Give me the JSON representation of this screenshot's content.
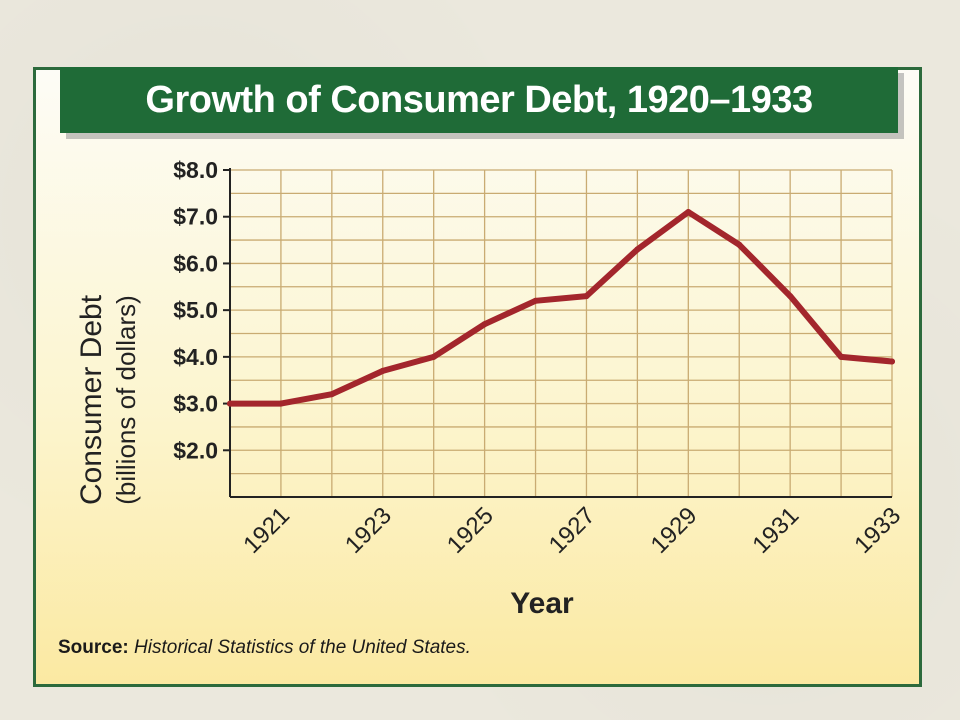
{
  "chart_data": {
    "type": "line",
    "title": "Growth of Consumer Debt, 1920–1933",
    "xlabel": "Year",
    "ylabel_line1": "Consumer Debt",
    "ylabel_line2": "(billions of dollars)",
    "x": [
      1920,
      1921,
      1922,
      1923,
      1924,
      1925,
      1926,
      1927,
      1928,
      1929,
      1930,
      1931,
      1932,
      1933
    ],
    "x_tick_labels": [
      "1921",
      "1923",
      "1925",
      "1927",
      "1929",
      "1931",
      "1933"
    ],
    "x_tick_values": [
      1921,
      1923,
      1925,
      1927,
      1929,
      1931,
      1933
    ],
    "y_tick_labels": [
      "$2.0",
      "$3.0",
      "$4.0",
      "$5.0",
      "$6.0",
      "$7.0",
      "$8.0"
    ],
    "y_tick_values": [
      2,
      3,
      4,
      5,
      6,
      7,
      8
    ],
    "series": [
      {
        "values": [
          3.0,
          3.0,
          3.2,
          3.7,
          4.0,
          4.7,
          5.2,
          5.3,
          6.3,
          7.1,
          6.4,
          5.3,
          4.0,
          3.9
        ],
        "color": "#a3262c"
      }
    ],
    "xlim": [
      1920,
      1933
    ],
    "ylim": [
      1.0,
      8.0
    ],
    "grid": true,
    "grid_color": "#c9ab72"
  },
  "source": {
    "label": "Source:",
    "text": "Historical Statistics of the United States."
  },
  "colors": {
    "banner": "#1f6b37",
    "border": "#2c6a3c",
    "line": "#a3262c"
  }
}
